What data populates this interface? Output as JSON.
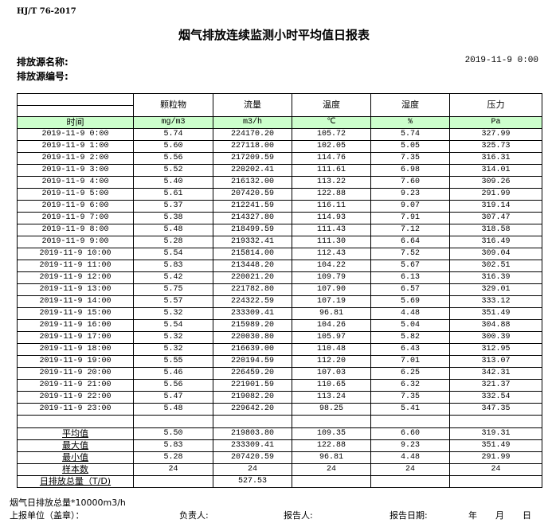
{
  "standard": "HJ/T  76-2017",
  "title": "烟气排放连续监测小时平均值日报表",
  "source_name_label": "排放源名称:",
  "source_id_label": "排放源编号:",
  "report_datetime": "2019-11-9 0:00",
  "table": {
    "time_header": "时间",
    "columns": [
      {
        "name": "颗粒物",
        "unit": "mg/m3"
      },
      {
        "name": "流量",
        "unit": "m3/h"
      },
      {
        "name": "温度",
        "unit": "℃"
      },
      {
        "name": "湿度",
        "unit": "%"
      },
      {
        "name": "压力",
        "unit": "Pa"
      }
    ],
    "header_fill_color": "#ccffcc",
    "rows": [
      [
        "2019-11-9 0:00",
        "5.74",
        "224170.20",
        "105.72",
        "5.74",
        "327.99"
      ],
      [
        "2019-11-9 1:00",
        "5.60",
        "227118.00",
        "102.05",
        "5.05",
        "325.73"
      ],
      [
        "2019-11-9 2:00",
        "5.56",
        "217209.59",
        "114.76",
        "7.35",
        "316.31"
      ],
      [
        "2019-11-9 3:00",
        "5.52",
        "220202.41",
        "111.61",
        "6.98",
        "314.01"
      ],
      [
        "2019-11-9 4:00",
        "5.40",
        "216132.00",
        "113.22",
        "7.60",
        "309.26"
      ],
      [
        "2019-11-9 5:00",
        "5.61",
        "207420.59",
        "122.88",
        "9.23",
        "291.99"
      ],
      [
        "2019-11-9 6:00",
        "5.37",
        "212241.59",
        "116.11",
        "9.07",
        "319.14"
      ],
      [
        "2019-11-9 7:00",
        "5.38",
        "214327.80",
        "114.93",
        "7.91",
        "307.47"
      ],
      [
        "2019-11-9 8:00",
        "5.48",
        "218499.59",
        "111.43",
        "7.12",
        "318.58"
      ],
      [
        "2019-11-9 9:00",
        "5.28",
        "219332.41",
        "111.30",
        "6.64",
        "316.49"
      ],
      [
        "2019-11-9 10:00",
        "5.54",
        "215814.00",
        "112.43",
        "7.52",
        "309.04"
      ],
      [
        "2019-11-9 11:00",
        "5.83",
        "213448.20",
        "104.22",
        "5.67",
        "302.51"
      ],
      [
        "2019-11-9 12:00",
        "5.42",
        "220021.20",
        "109.79",
        "6.13",
        "316.39"
      ],
      [
        "2019-11-9 13:00",
        "5.75",
        "221782.80",
        "107.90",
        "6.57",
        "329.01"
      ],
      [
        "2019-11-9 14:00",
        "5.57",
        "224322.59",
        "107.19",
        "5.69",
        "333.12"
      ],
      [
        "2019-11-9 15:00",
        "5.32",
        "233309.41",
        "96.81",
        "4.48",
        "351.49"
      ],
      [
        "2019-11-9 16:00",
        "5.54",
        "215989.20",
        "104.26",
        "5.04",
        "304.88"
      ],
      [
        "2019-11-9 17:00",
        "5.32",
        "220030.80",
        "105.97",
        "5.82",
        "300.39"
      ],
      [
        "2019-11-9 18:00",
        "5.32",
        "216639.00",
        "110.48",
        "6.43",
        "312.95"
      ],
      [
        "2019-11-9 19:00",
        "5.55",
        "220194.59",
        "112.20",
        "7.01",
        "313.07"
      ],
      [
        "2019-11-9 20:00",
        "5.46",
        "226459.20",
        "107.03",
        "6.25",
        "342.31"
      ],
      [
        "2019-11-9 21:00",
        "5.56",
        "221901.59",
        "110.65",
        "6.32",
        "321.37"
      ],
      [
        "2019-11-9 22:00",
        "5.47",
        "219082.20",
        "113.24",
        "7.35",
        "332.54"
      ],
      [
        "2019-11-9 23:00",
        "5.48",
        "229642.20",
        "98.25",
        "5.41",
        "347.35"
      ]
    ],
    "stats": [
      [
        "平均值",
        "5.50",
        "219803.80",
        "109.35",
        "6.60",
        "319.31"
      ],
      [
        "最大值",
        "5.83",
        "233309.41",
        "122.88",
        "9.23",
        "351.49"
      ],
      [
        "最小值",
        "5.28",
        "207420.59",
        "96.81",
        "4.48",
        "291.99"
      ],
      [
        "样本数",
        "24",
        "24",
        "24",
        "24",
        "24"
      ],
      [
        "日排放总量（T/D)",
        "",
        "527.53",
        "",
        "",
        ""
      ]
    ]
  },
  "footer": {
    "note": "烟气日排放总量*10000m3/h",
    "unit_label": "上报单位（盖章）：",
    "responsible_label": "负责人:",
    "reporter_label": "报告人:",
    "report_date_label": "报告日期:",
    "year": "年",
    "month": "月",
    "day": "日"
  }
}
